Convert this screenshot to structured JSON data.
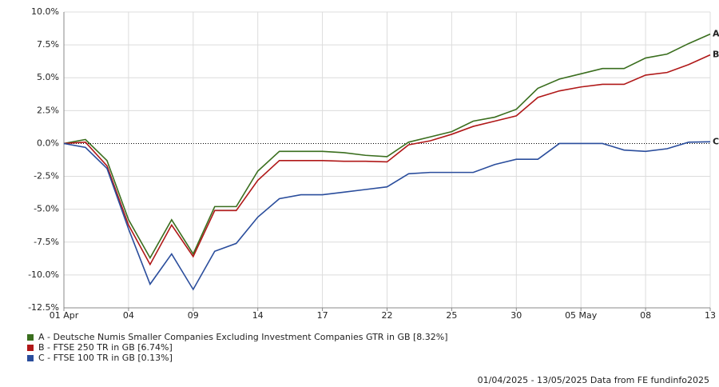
{
  "chart_data": {
    "type": "line",
    "categories": [
      "01 Apr",
      null,
      null,
      "04",
      null,
      null,
      "09",
      null,
      null,
      "14",
      null,
      null,
      "17",
      null,
      null,
      "22",
      null,
      null,
      "25",
      null,
      null,
      "30",
      null,
      null,
      "05 May",
      null,
      null,
      "08",
      null,
      null,
      "13"
    ],
    "series": [
      {
        "name": "A - Deutsche Numis Smaller Companies Excluding Investment Companies GTR in GB [8.32%]",
        "end_label": "A",
        "color": "#3a6e1e",
        "values": [
          0,
          0.3,
          -1.3,
          -5.8,
          -8.7,
          -5.8,
          -8.4,
          -4.8,
          -4.8,
          -2.1,
          -0.6,
          -0.6,
          -0.6,
          -0.7,
          -0.9,
          -1.0,
          0.1,
          0.5,
          0.9,
          1.7,
          2.0,
          2.6,
          4.2,
          4.9,
          5.3,
          5.7,
          5.7,
          6.5,
          6.8,
          7.6,
          8.32
        ]
      },
      {
        "name": "B - FTSE 250 TR in GB [6.74%]",
        "end_label": "B",
        "color": "#b01818",
        "values": [
          0,
          0.1,
          -1.7,
          -6.2,
          -9.2,
          -6.2,
          -8.6,
          -5.1,
          -5.1,
          -2.8,
          -1.3,
          -1.3,
          -1.3,
          -1.35,
          -1.35,
          -1.4,
          -0.1,
          0.2,
          0.7,
          1.3,
          1.7,
          2.1,
          3.5,
          4.0,
          4.3,
          4.5,
          4.5,
          5.2,
          5.4,
          6.0,
          6.74
        ]
      },
      {
        "name": "C - FTSE 100 TR in GB [0.13%]",
        "end_label": "C",
        "color": "#2a4d9c",
        "values": [
          0,
          -0.3,
          -1.9,
          -6.5,
          -10.7,
          -8.4,
          -11.1,
          -8.2,
          -7.6,
          -5.6,
          -4.2,
          -3.9,
          -3.9,
          -3.7,
          -3.5,
          -3.3,
          -2.3,
          -2.2,
          -2.2,
          -2.2,
          -1.6,
          -1.2,
          -1.2,
          0.0,
          0.0,
          0.0,
          -0.5,
          -0.6,
          -0.4,
          0.1,
          0.13
        ]
      }
    ],
    "ylim": [
      -12.5,
      10
    ],
    "yticks": [
      {
        "value": -12.5,
        "label": "-12.5%"
      },
      {
        "value": -10,
        "label": "-10.0%"
      },
      {
        "value": -7.5,
        "label": "-7.5%"
      },
      {
        "value": -5,
        "label": "-5.0%"
      },
      {
        "value": -2.5,
        "label": "-2.5%"
      },
      {
        "value": 0,
        "label": "0.0%"
      },
      {
        "value": 2.5,
        "label": "2.5%"
      },
      {
        "value": 5,
        "label": "5.0%"
      },
      {
        "value": 7.5,
        "label": "7.5%"
      },
      {
        "value": 10,
        "label": "10.0%"
      }
    ],
    "grid": true,
    "footer": "01/04/2025 - 13/05/2025 Data from FE fundinfo2025"
  }
}
